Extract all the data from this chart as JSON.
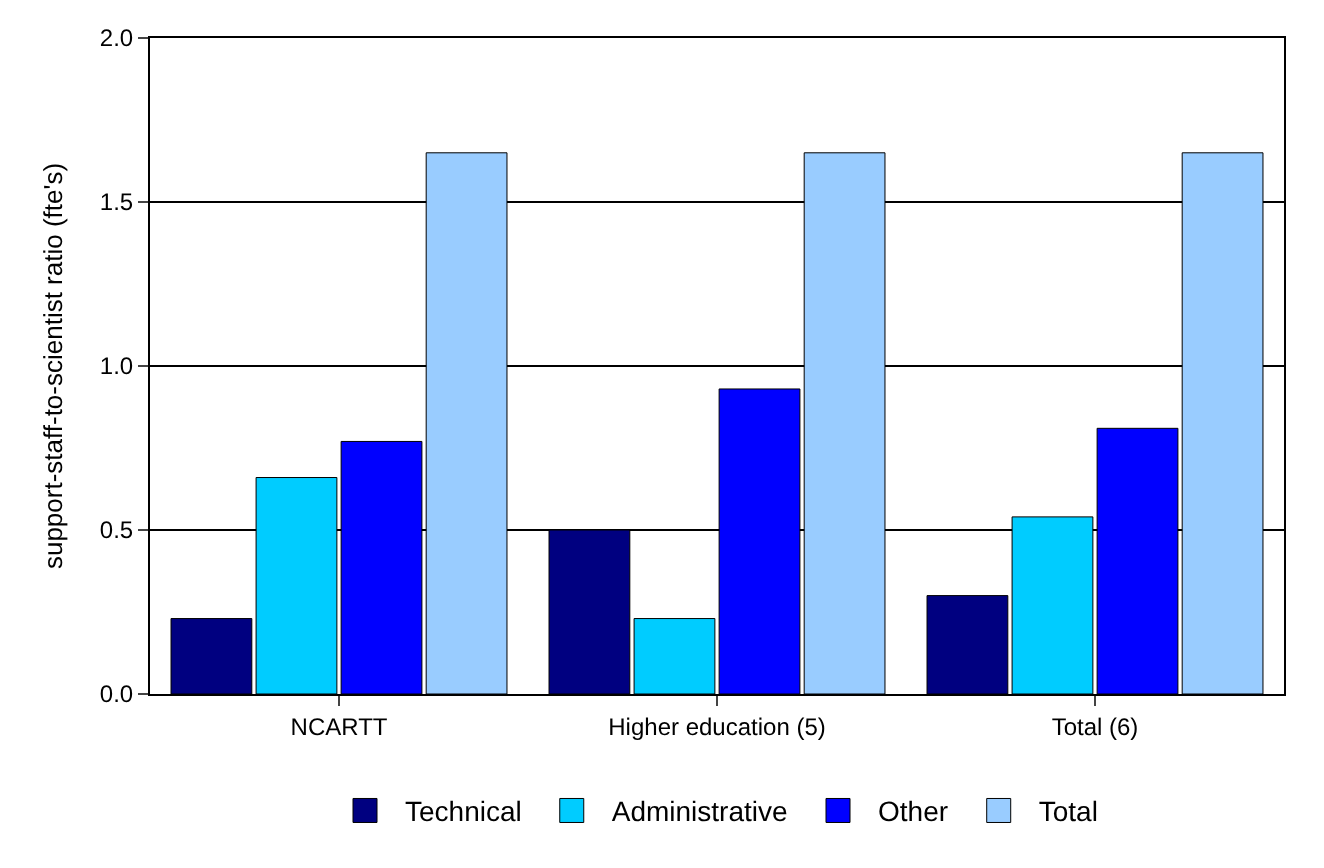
{
  "chart_data": {
    "type": "bar",
    "ylabel": "support-staff-to-scientist ratio (fte's)",
    "categories": [
      "NCARTT",
      "Higher education (5)",
      "Total (6)"
    ],
    "series": [
      {
        "name": "Technical",
        "color": "#000080",
        "values": [
          0.23,
          0.5,
          0.3
        ]
      },
      {
        "name": "Administrative",
        "color": "#00ccff",
        "values": [
          0.66,
          0.23,
          0.54
        ]
      },
      {
        "name": "Other",
        "color": "#0000ff",
        "values": [
          0.77,
          0.93,
          0.81
        ]
      },
      {
        "name": "Total",
        "color": "#99ccff",
        "values": [
          1.65,
          1.65,
          1.65
        ]
      }
    ],
    "ylim": [
      0,
      2
    ],
    "yticks": [
      {
        "value": 0,
        "label": "0.0"
      },
      {
        "value": 0.5,
        "label": "0.5"
      },
      {
        "value": 1,
        "label": "1.0"
      },
      {
        "value": 1.5,
        "label": "1.5"
      },
      {
        "value": 2,
        "label": "2.0"
      }
    ],
    "grid": "y",
    "legend": "bottom"
  }
}
